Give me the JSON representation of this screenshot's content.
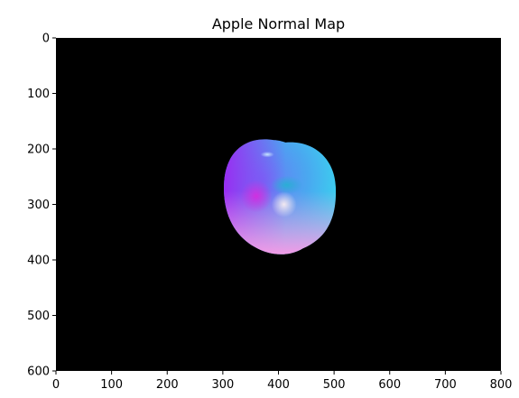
{
  "chart_data": {
    "type": "heatmap",
    "title": "Apple Normal Map",
    "xlabel": "",
    "ylabel": "",
    "xlim": [
      0,
      800
    ],
    "ylim": [
      600,
      0
    ],
    "x_ticks": [
      0,
      100,
      200,
      300,
      400,
      500,
      600,
      700,
      800
    ],
    "y_ticks": [
      0,
      100,
      200,
      300,
      400,
      500,
      600
    ],
    "x_tick_labels": [
      "0",
      "100",
      "200",
      "300",
      "400",
      "500",
      "600",
      "700",
      "800"
    ],
    "y_tick_labels": [
      "0",
      "100",
      "200",
      "300",
      "400",
      "500",
      "600"
    ],
    "grid": false,
    "background_color": "#000000",
    "image_content": {
      "shape": "apple",
      "center": [
        400,
        290
      ],
      "x_extent": [
        300,
        505
      ],
      "y_extent": [
        180,
        390
      ],
      "colors": {
        "left_edge": "#9a2cf2",
        "upper_left": "#5e6cf5",
        "top": "#4f90f0",
        "right": "#35e0ee",
        "bottom": "#f39ae6",
        "center_highlight": "#f3e9f0",
        "stem_cavity": "#2aaed5",
        "lower_left_shadow": "#d030e0"
      }
    }
  }
}
